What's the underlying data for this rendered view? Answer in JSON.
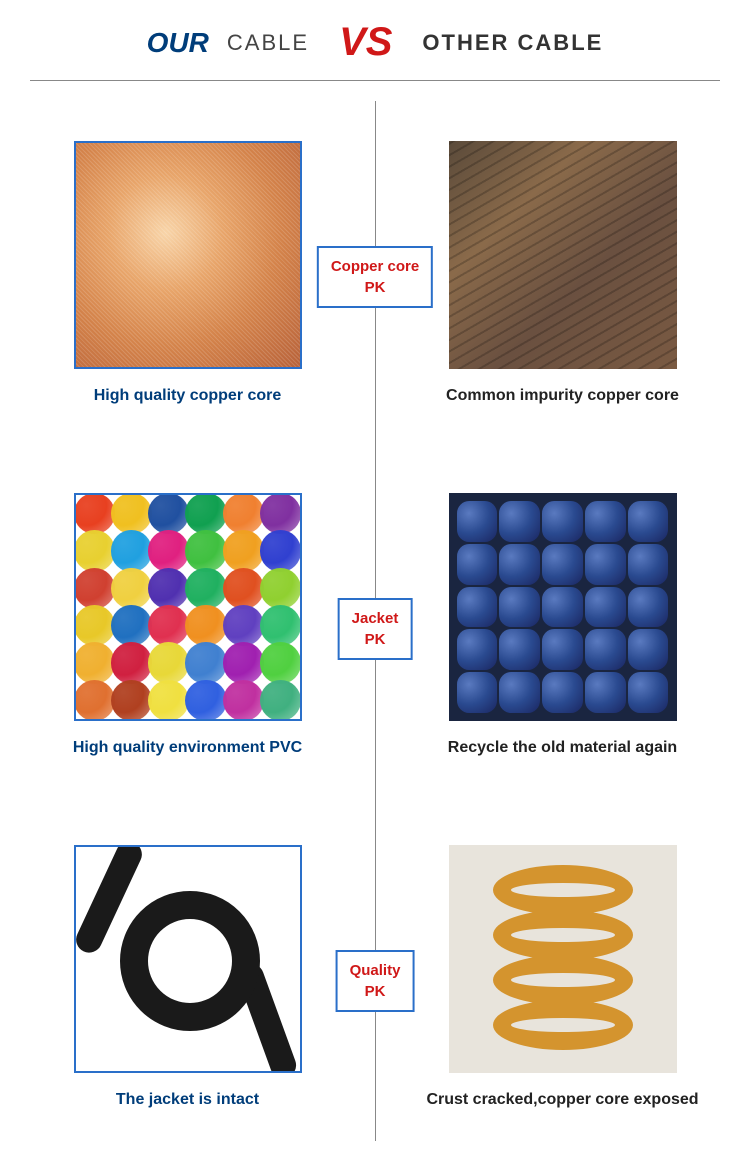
{
  "header": {
    "our": "OUR",
    "cable1": "CABLE",
    "vs": "VS",
    "other": "OTHER CABLE"
  },
  "colors": {
    "accent_blue": "#003d7a",
    "accent_red": "#d01818",
    "border_blue": "#2a6fc9",
    "text_dark": "#222222"
  },
  "rows": [
    {
      "pk_label_line1": "Copper core",
      "pk_label_line2": "PK",
      "left_caption": "High quality copper core",
      "right_caption": "Common impurity copper core"
    },
    {
      "pk_label_line1": "Jacket",
      "pk_label_line2": "PK",
      "left_caption": "High quality environment PVC",
      "right_caption": "Recycle the old material again"
    },
    {
      "pk_label_line1": "Quality",
      "pk_label_line2": "PK",
      "left_caption": "The jacket is intact",
      "right_caption": "Crust cracked,copper core exposed"
    }
  ],
  "pvc_colors": [
    "#e84020",
    "#f0c020",
    "#2050a0",
    "#10a050",
    "#f08030",
    "#8030a0",
    "#e8d030",
    "#20a0e0",
    "#e02080",
    "#40c040",
    "#f0a020",
    "#3040d0",
    "#d04030",
    "#f0d040",
    "#5030b0",
    "#20b060",
    "#e05020",
    "#90d030",
    "#e8c828",
    "#2070c0",
    "#e03050",
    "#f09020",
    "#6040c0",
    "#30c070",
    "#f0b030",
    "#d02040",
    "#e8d838",
    "#4080d0",
    "#a020b0",
    "#50d040",
    "#e07030",
    "#b04020",
    "#f0e040",
    "#3060e0",
    "#c030a0",
    "#40b080"
  ]
}
